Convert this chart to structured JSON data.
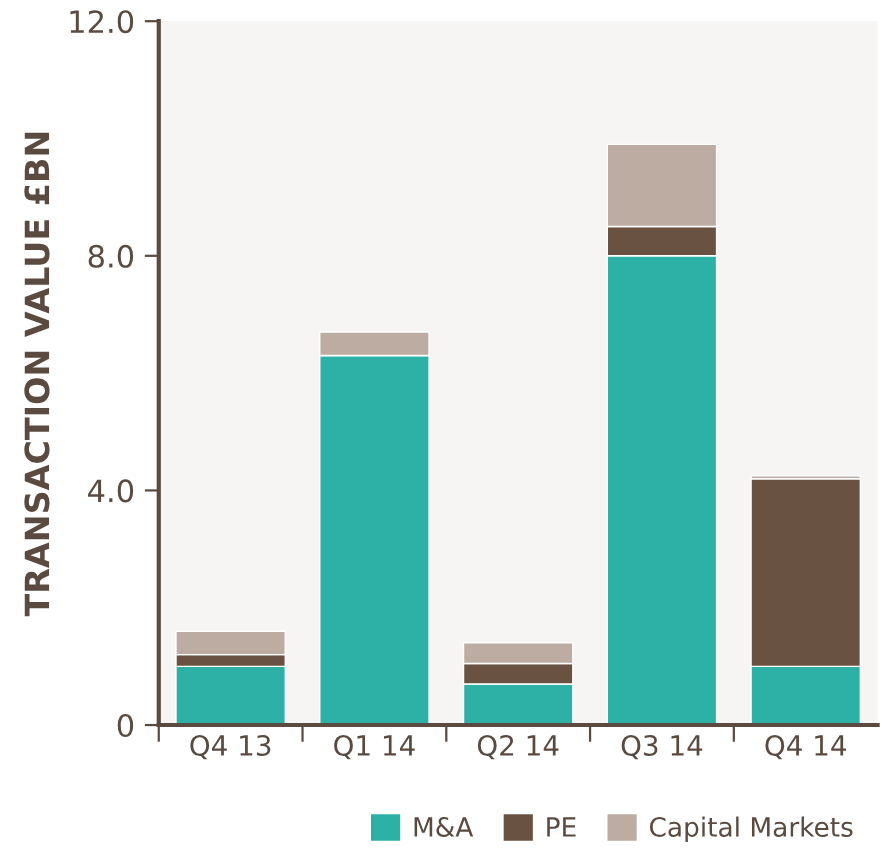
{
  "chart_data": {
    "type": "bar",
    "stacked": true,
    "ylabel": "TRANSACTION VALUE £BN",
    "categories": [
      "Q4 13",
      "Q1 14",
      "Q2 14",
      "Q3 14",
      "Q4 14"
    ],
    "series": [
      {
        "name": "M&A",
        "color": "#2db0a6",
        "values": [
          1.0,
          6.3,
          0.7,
          8.0,
          1.0
        ]
      },
      {
        "name": "PE",
        "color": "#6a5242",
        "values": [
          0.2,
          0,
          0.35,
          0.5,
          3.2
        ]
      },
      {
        "name": "Capital Markets",
        "color": "#bcaca1",
        "values": [
          0.4,
          0.4,
          0.35,
          1.4,
          0.05
        ]
      }
    ],
    "ylim": [
      0,
      12
    ],
    "yticks": [
      {
        "value": 0,
        "label": "0"
      },
      {
        "value": 4,
        "label": "4.0"
      },
      {
        "value": 8,
        "label": "8.0"
      },
      {
        "value": 12,
        "label": "12.0"
      }
    ],
    "grid": false,
    "legend": "bottom"
  }
}
